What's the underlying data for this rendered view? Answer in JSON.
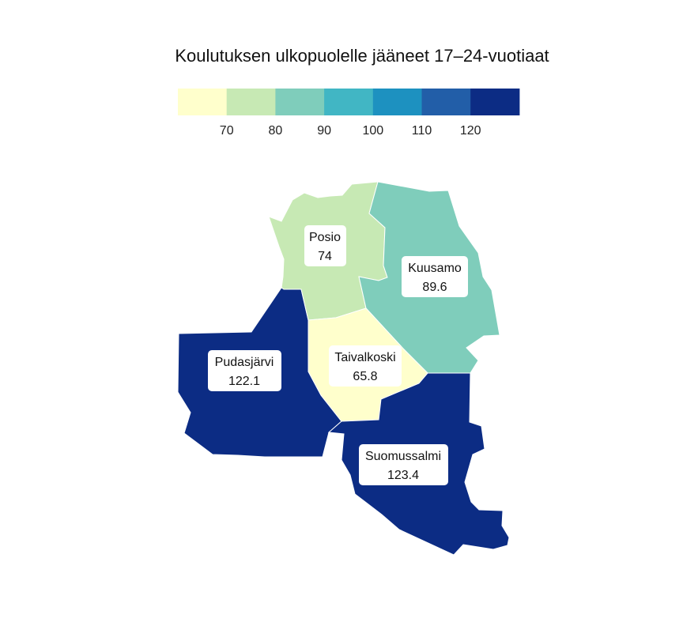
{
  "title": "Koulutuksen ulkopuolelle jääneet 17–24-vuotiaat",
  "legend": {
    "bins": [
      {
        "color": "#ffffcc"
      },
      {
        "color": "#c7e9b4",
        "label": "70"
      },
      {
        "color": "#7fcdbb",
        "label": "80"
      },
      {
        "color": "#41b6c4",
        "label": "90"
      },
      {
        "color": "#1d91c0",
        "label": "100"
      },
      {
        "color": "#225ea8",
        "label": "110"
      },
      {
        "color": "#0c2c84",
        "label": "120"
      }
    ],
    "thresholds": [
      70,
      80,
      90,
      100,
      110,
      120
    ]
  },
  "municipalities": [
    {
      "name": "Posio",
      "value": "74",
      "value_num": 74
    },
    {
      "name": "Kuusamo",
      "value": "89.6",
      "value_num": 89.6
    },
    {
      "name": "Taivalkoski",
      "value": "65.8",
      "value_num": 65.8
    },
    {
      "name": "Pudasjärvi",
      "value": "122.1",
      "value_num": 122.1
    },
    {
      "name": "Suomussalmi",
      "value": "123.4",
      "value_num": 123.4
    }
  ]
}
